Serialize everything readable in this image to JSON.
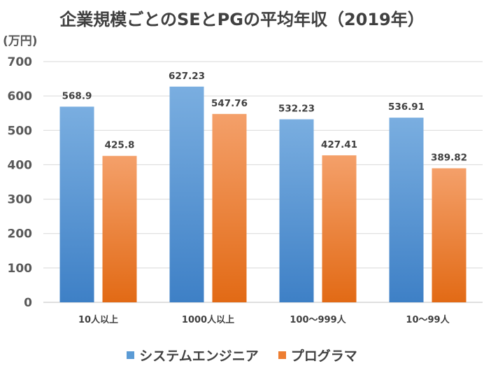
{
  "chart_data": {
    "type": "bar",
    "title": "企業規模ごとのSEとPGの平均年収（2019年）",
    "ylabel": "(万円)",
    "xlabel": "",
    "ylim": [
      0,
      700
    ],
    "yticks": [
      0,
      100,
      200,
      300,
      400,
      500,
      600,
      700
    ],
    "grid": true,
    "legend_position": "bottom",
    "categories": [
      "10人以上",
      "1000人以上",
      "100～999人",
      "10～99人"
    ],
    "series": [
      {
        "name": "システムエンジニア",
        "color": "#5B9BD5",
        "values": [
          568.9,
          627.23,
          532.23,
          536.91
        ]
      },
      {
        "name": "プログラマ",
        "color": "#ED7D31",
        "values": [
          425.8,
          547.76,
          427.41,
          389.82
        ]
      }
    ],
    "data_labels": [
      [
        "568.9",
        "627.23",
        "532.23",
        "536.91"
      ],
      [
        "425.8",
        "547.76",
        "427.41",
        "389.82"
      ]
    ]
  }
}
